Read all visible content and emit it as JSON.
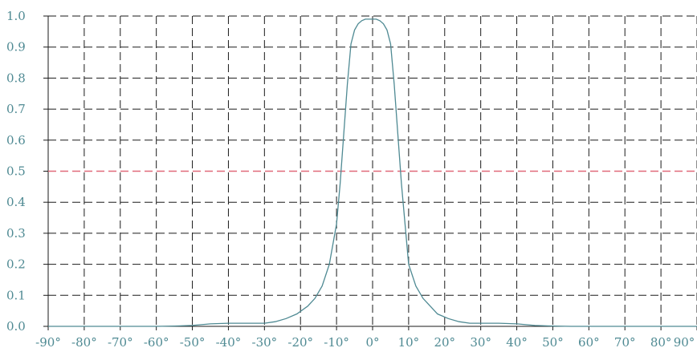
{
  "chart_data": {
    "type": "line",
    "title": "",
    "xlabel": "",
    "ylabel": "",
    "xlim": [
      -90,
      90
    ],
    "ylim": [
      0,
      1
    ],
    "grid": true,
    "x_ticks": [
      -90,
      -80,
      -70,
      -60,
      -50,
      -40,
      -30,
      -20,
      -10,
      0,
      10,
      20,
      30,
      40,
      50,
      60,
      70,
      80,
      90
    ],
    "x_tick_labels": [
      "-90°",
      "-80°",
      "-70°",
      "-60°",
      "-50°",
      "-40°",
      "-30°",
      "-20°",
      "-10°",
      "0°",
      "10°",
      "20°",
      "30°",
      "40°",
      "50°",
      "60°",
      "70°",
      "80°",
      "90°"
    ],
    "y_ticks": [
      0,
      0.1,
      0.2,
      0.3,
      0.4,
      0.5,
      0.6,
      0.7,
      0.8,
      0.9,
      1.0
    ],
    "y_tick_labels": [
      "0.0",
      "0.1",
      "0.2",
      "0.3",
      "0.4",
      "0.5",
      "0.6",
      "0.7",
      "0.8",
      "0.9",
      "1.0"
    ],
    "reference_line": {
      "y": 0.5,
      "color": "#e06a7a"
    },
    "series": [
      {
        "color": "#4f8a93",
        "x": [
          -90,
          -60,
          -55,
          -50,
          -45,
          -40,
          -35,
          -30,
          -27,
          -24,
          -21,
          -18,
          -16,
          -14,
          -12,
          -10,
          -9,
          -8,
          -7,
          -6,
          -5,
          -4,
          -3,
          -2,
          -1,
          0,
          1,
          2,
          3,
          4,
          5,
          6,
          7,
          8,
          9,
          10,
          12,
          14,
          16,
          18,
          21,
          24,
          27,
          30,
          35,
          40,
          45,
          50,
          55,
          60,
          90
        ],
        "y": [
          0,
          0,
          0.001,
          0.003,
          0.008,
          0.01,
          0.01,
          0.01,
          0.015,
          0.025,
          0.04,
          0.065,
          0.09,
          0.13,
          0.2,
          0.33,
          0.46,
          0.62,
          0.78,
          0.91,
          0.955,
          0.975,
          0.985,
          0.99,
          0.99,
          0.99,
          0.99,
          0.985,
          0.975,
          0.955,
          0.91,
          0.78,
          0.62,
          0.46,
          0.33,
          0.2,
          0.13,
          0.09,
          0.065,
          0.04,
          0.025,
          0.015,
          0.01,
          0.01,
          0.01,
          0.008,
          0.003,
          0.001,
          0,
          0,
          0
        ]
      }
    ]
  }
}
